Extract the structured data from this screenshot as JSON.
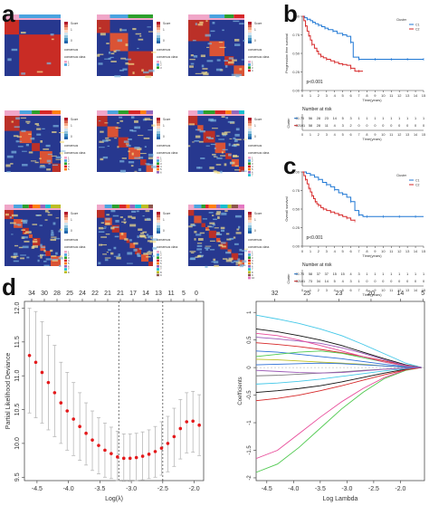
{
  "panels": {
    "a": "a",
    "b": "b",
    "c": "c",
    "d": "d"
  },
  "consensus": {
    "legend_titles": [
      "Score",
      "consensus",
      "consensus class"
    ],
    "score_ticks": [
      "1",
      "0.8",
      "0.6",
      "0.4",
      "0.2",
      "0"
    ],
    "class_labels": [
      [
        "1",
        "2"
      ],
      [
        "1",
        "2",
        "3"
      ],
      [
        "1",
        "2",
        "3",
        "4"
      ],
      [
        "1",
        "2",
        "3",
        "4",
        "5"
      ],
      [
        "1",
        "2",
        "3",
        "4",
        "5",
        "6"
      ],
      [
        "1",
        "2",
        "3",
        "4",
        "5",
        "6",
        "7"
      ],
      [
        "1",
        "2",
        "3",
        "4",
        "5",
        "6",
        "7",
        "8"
      ],
      [
        "1",
        "2",
        "3",
        "4",
        "5",
        "6",
        "7",
        "8",
        "9"
      ],
      [
        "1",
        "2",
        "3",
        "4",
        "5",
        "6",
        "7",
        "8",
        "9",
        "10"
      ]
    ],
    "class_colors": [
      "#f0a6c8",
      "#4aa3df",
      "#2ca02c",
      "#d62728",
      "#ff7f0e",
      "#9467bd",
      "#17becf",
      "#bcbd22",
      "#8c564b",
      "#e377c2"
    ],
    "cluster_counts": [
      2,
      3,
      4,
      5,
      6,
      7,
      8,
      9,
      10
    ]
  },
  "chart_data": [
    {
      "type": "line",
      "title": "",
      "xlabel": "Time(years)",
      "ylabel": "Progression free survival",
      "x_ticks": [
        0,
        1,
        2,
        3,
        4,
        5,
        6,
        7,
        8,
        9,
        10,
        11,
        12,
        13,
        14,
        15
      ],
      "y_ticks": [
        0.0,
        0.25,
        0.5,
        0.75,
        1.0
      ],
      "xlim": [
        0,
        15
      ],
      "ylim": [
        0,
        1
      ],
      "legend_title": "Cluster",
      "legend_position": "top-right",
      "series": [
        {
          "name": "C1",
          "color": "#1f77d4",
          "x": [
            0,
            0.3,
            0.6,
            1,
            1.3,
            1.6,
            2,
            2.4,
            2.8,
            3.2,
            3.8,
            4.3,
            5,
            5.5,
            6,
            6.3,
            7,
            8,
            9,
            10,
            11,
            12,
            13,
            14,
            15
          ],
          "y": [
            1,
            0.98,
            0.96,
            0.94,
            0.92,
            0.9,
            0.88,
            0.86,
            0.84,
            0.82,
            0.8,
            0.77,
            0.75,
            0.73,
            0.65,
            0.45,
            0.42,
            0.42,
            0.42,
            0.42,
            0.42,
            0.42,
            0.42,
            0.42,
            0.42
          ]
        },
        {
          "name": "C2",
          "color": "#d62728",
          "x": [
            0,
            0.2,
            0.4,
            0.6,
            0.8,
            1,
            1.2,
            1.5,
            1.8,
            2,
            2.3,
            2.6,
            3,
            3.5,
            4,
            4.5,
            5,
            5.5,
            6,
            6.5,
            7,
            7.5
          ],
          "y": [
            1,
            0.94,
            0.87,
            0.8,
            0.74,
            0.68,
            0.62,
            0.57,
            0.53,
            0.49,
            0.46,
            0.44,
            0.42,
            0.4,
            0.38,
            0.36,
            0.35,
            0.34,
            0.3,
            0.26,
            0.26,
            0.26
          ]
        }
      ],
      "pvalue": "p<0.001",
      "risk_table_title": "Number at risk",
      "risk_table_ylabel": "Cluster",
      "risk_table": [
        {
          "name": "C1",
          "counts": [
            "70",
            "56",
            "28",
            "23",
            "14",
            "5",
            "3",
            "1",
            "1",
            "1",
            "1",
            "1",
            "1",
            "1",
            "1",
            "1"
          ]
        },
        {
          "name": "C2",
          "counts": [
            "101",
            "58",
            "28",
            "11",
            "4",
            "3",
            "2",
            "0",
            "0",
            "0",
            "0",
            "0",
            "0",
            "0",
            "0",
            "0"
          ]
        }
      ]
    },
    {
      "type": "line",
      "title": "",
      "xlabel": "Time(years)",
      "ylabel": "Overall survival",
      "x_ticks": [
        0,
        1,
        2,
        3,
        4,
        5,
        6,
        7,
        8,
        9,
        10,
        11,
        12,
        13,
        14,
        15
      ],
      "y_ticks": [
        0.0,
        0.25,
        0.5,
        0.75,
        1.0
      ],
      "xlim": [
        0,
        15
      ],
      "ylim": [
        0,
        1
      ],
      "legend_title": "Cluster",
      "legend_position": "top-right",
      "series": [
        {
          "name": "C1",
          "color": "#1f77d4",
          "x": [
            0,
            0.5,
            1,
            1.5,
            2,
            2.5,
            3,
            3.5,
            4,
            4.5,
            5,
            5.5,
            6,
            6.5,
            7,
            7.5,
            8,
            9,
            10,
            11,
            12,
            13,
            14,
            15
          ],
          "y": [
            1,
            0.98,
            0.96,
            0.93,
            0.9,
            0.86,
            0.83,
            0.8,
            0.76,
            0.72,
            0.7,
            0.66,
            0.6,
            0.48,
            0.42,
            0.4,
            0.4,
            0.4,
            0.4,
            0.4,
            0.4,
            0.4,
            0.4,
            0.4
          ]
        },
        {
          "name": "C2",
          "color": "#d62728",
          "x": [
            0,
            0.2,
            0.4,
            0.6,
            0.8,
            1,
            1.2,
            1.4,
            1.6,
            1.8,
            2,
            2.3,
            2.6,
            3,
            3.5,
            4,
            4.5,
            5,
            5.5,
            6,
            6.5
          ],
          "y": [
            1,
            0.95,
            0.9,
            0.84,
            0.78,
            0.73,
            0.68,
            0.64,
            0.6,
            0.57,
            0.55,
            0.52,
            0.5,
            0.48,
            0.46,
            0.44,
            0.42,
            0.4,
            0.38,
            0.35,
            0.34
          ]
        }
      ],
      "pvalue": "p<0.001",
      "risk_table_title": "Number at risk",
      "risk_table_ylabel": "Cluster",
      "risk_table": [
        {
          "name": "C1",
          "counts": [
            "70",
            "58",
            "37",
            "37",
            "15",
            "15",
            "4",
            "3",
            "1",
            "1",
            "1",
            "1",
            "1",
            "1",
            "1",
            "1"
          ]
        },
        {
          "name": "C2",
          "counts": [
            "101",
            "73",
            "34",
            "14",
            "5",
            "4",
            "3",
            "1",
            "0",
            "0",
            "0",
            "0",
            "0",
            "0",
            "0",
            "0"
          ]
        }
      ]
    },
    {
      "type": "scatter",
      "title": "",
      "xlabel": "Log(λ)",
      "ylabel": "Partial Likelihood Deviance",
      "xlim": [
        -4.7,
        -1.85
      ],
      "ylim": [
        9.45,
        12.1
      ],
      "x_ticks": [
        -4.5,
        -4.0,
        -3.5,
        -3.0,
        -2.5,
        -2.0
      ],
      "x_tick_labels": [
        "-4.5",
        "-4.0",
        "-3.5",
        "-3.0",
        "-2.5",
        "-2.0"
      ],
      "y_ticks": [
        9.5,
        10.0,
        10.5,
        11.0,
        11.5,
        12.0
      ],
      "y_tick_labels": [
        "9.5",
        "10.0",
        "10.5",
        "11.0",
        "11.5",
        "12.0"
      ],
      "top_axis_labels": [
        "34",
        "30",
        "28",
        "25",
        "24",
        "22",
        "21",
        "21",
        "17",
        "14",
        "13",
        "11",
        "5",
        "0"
      ],
      "vlines": [
        -3.2,
        -2.5
      ],
      "points": [
        {
          "x": -4.62,
          "y": 11.3,
          "lo": 10.45,
          "hi": 12.0
        },
        {
          "x": -4.52,
          "y": 11.2,
          "lo": 10.38,
          "hi": 11.95
        },
        {
          "x": -4.42,
          "y": 11.05,
          "lo": 10.3,
          "hi": 11.8
        },
        {
          "x": -4.32,
          "y": 10.9,
          "lo": 10.2,
          "hi": 11.6
        },
        {
          "x": -4.22,
          "y": 10.75,
          "lo": 10.1,
          "hi": 11.45
        },
        {
          "x": -4.12,
          "y": 10.6,
          "lo": 10.0,
          "hi": 11.2
        },
        {
          "x": -4.02,
          "y": 10.48,
          "lo": 9.9,
          "hi": 11.05
        },
        {
          "x": -3.92,
          "y": 10.36,
          "lo": 9.82,
          "hi": 10.9
        },
        {
          "x": -3.82,
          "y": 10.25,
          "lo": 9.75,
          "hi": 10.75
        },
        {
          "x": -3.72,
          "y": 10.15,
          "lo": 9.68,
          "hi": 10.6
        },
        {
          "x": -3.62,
          "y": 10.05,
          "lo": 9.6,
          "hi": 10.48
        },
        {
          "x": -3.52,
          "y": 9.97,
          "lo": 9.55,
          "hi": 10.38
        },
        {
          "x": -3.42,
          "y": 9.9,
          "lo": 9.5,
          "hi": 10.3
        },
        {
          "x": -3.32,
          "y": 9.85,
          "lo": 9.48,
          "hi": 10.24
        },
        {
          "x": -3.22,
          "y": 9.8,
          "lo": 9.45,
          "hi": 10.18
        },
        {
          "x": -3.12,
          "y": 9.78,
          "lo": 9.44,
          "hi": 10.14
        },
        {
          "x": -3.02,
          "y": 9.78,
          "lo": 9.44,
          "hi": 10.14
        },
        {
          "x": -2.92,
          "y": 9.79,
          "lo": 9.45,
          "hi": 10.15
        },
        {
          "x": -2.82,
          "y": 9.81,
          "lo": 9.46,
          "hi": 10.17
        },
        {
          "x": -2.72,
          "y": 9.84,
          "lo": 9.48,
          "hi": 10.2
        },
        {
          "x": -2.62,
          "y": 9.88,
          "lo": 9.5,
          "hi": 10.25
        },
        {
          "x": -2.52,
          "y": 9.93,
          "lo": 9.53,
          "hi": 10.32
        },
        {
          "x": -2.42,
          "y": 10.0,
          "lo": 9.58,
          "hi": 10.4
        },
        {
          "x": -2.32,
          "y": 10.1,
          "lo": 9.66,
          "hi": 10.52
        },
        {
          "x": -2.22,
          "y": 10.22,
          "lo": 9.77,
          "hi": 10.65
        },
        {
          "x": -2.12,
          "y": 10.32,
          "lo": 9.86,
          "hi": 10.75
        },
        {
          "x": -2.02,
          "y": 10.33,
          "lo": 9.87,
          "hi": 10.77
        },
        {
          "x": -1.92,
          "y": 10.27,
          "lo": 9.82,
          "hi": 10.72
        }
      ]
    },
    {
      "type": "line",
      "title": "",
      "xlabel": "Log Lambda",
      "ylabel": "Coefficients",
      "xlim": [
        -4.7,
        -1.55
      ],
      "ylim": [
        -2.05,
        1.2
      ],
      "x_ticks": [
        -4.5,
        -4.0,
        -3.5,
        -3.0,
        -2.5,
        -2.0
      ],
      "x_tick_labels": [
        "-4.5",
        "-4.0",
        "-3.5",
        "-3.0",
        "-2.5",
        "-2.0"
      ],
      "y_ticks": [
        -2,
        -1.5,
        -1,
        -0.5,
        0,
        0.5,
        1
      ],
      "y_tick_labels": [
        "-2",
        "-1.5",
        "-1",
        "-0.5",
        "0",
        "0.5",
        "1"
      ],
      "top_axis_ticks": [
        -4.35,
        -3.75,
        -3.15,
        -2.55,
        -2.0,
        -1.58
      ],
      "top_axis_labels": [
        "32",
        "25",
        "23",
        "20",
        "14",
        "5"
      ],
      "series": [
        {
          "color": "#4ec94e",
          "x": [
            -4.7,
            -4.3,
            -3.9,
            -3.5,
            -3.1,
            -2.7,
            -2.3,
            -1.9,
            -1.6
          ],
          "y": [
            -1.9,
            -1.75,
            -1.45,
            -1.1,
            -0.75,
            -0.45,
            -0.2,
            -0.05,
            0
          ]
        },
        {
          "color": "#e84c9a",
          "x": [
            -4.7,
            -4.3,
            -3.9,
            -3.5,
            -3.1,
            -2.7,
            -2.3,
            -1.9,
            -1.6
          ],
          "y": [
            -1.65,
            -1.5,
            -1.2,
            -0.9,
            -0.62,
            -0.38,
            -0.18,
            -0.04,
            0
          ]
        },
        {
          "color": "#44c8e8",
          "x": [
            -4.7,
            -4.3,
            -3.9,
            -3.5,
            -3.1,
            -2.7,
            -2.3,
            -1.9,
            -1.6
          ],
          "y": [
            0.95,
            0.88,
            0.8,
            0.7,
            0.58,
            0.42,
            0.25,
            0.08,
            0
          ]
        },
        {
          "color": "#111111",
          "x": [
            -4.7,
            -4.3,
            -3.9,
            -3.5,
            -3.1,
            -2.7,
            -2.3,
            -1.9,
            -1.6
          ],
          "y": [
            0.7,
            0.65,
            0.58,
            0.5,
            0.4,
            0.28,
            0.16,
            0.05,
            0
          ]
        },
        {
          "color": "#d62728",
          "x": [
            -4.7,
            -4.3,
            -3.9,
            -3.5,
            -3.1,
            -2.7,
            -2.3,
            -1.9,
            -1.6
          ],
          "y": [
            0.45,
            0.42,
            0.38,
            0.33,
            0.27,
            0.2,
            0.12,
            0.04,
            0
          ]
        },
        {
          "color": "#2c6fd6",
          "x": [
            -4.7,
            -4.3,
            -3.9,
            -3.5,
            -3.1,
            -2.7,
            -2.3,
            -1.9,
            -1.6
          ],
          "y": [
            0.3,
            0.28,
            0.24,
            0.2,
            0.16,
            0.11,
            0.06,
            0.02,
            0
          ]
        },
        {
          "color": "#9b59b6",
          "x": [
            -4.7,
            -4.3,
            -3.9,
            -3.5,
            -3.1,
            -2.7,
            -2.3,
            -1.9,
            -1.6
          ],
          "y": [
            0.55,
            0.52,
            0.48,
            0.44,
            0.36,
            0.26,
            0.14,
            0.04,
            0
          ]
        },
        {
          "color": "#bcbd22",
          "x": [
            -4.7,
            -4.3,
            -3.9,
            -3.5,
            -3.1,
            -2.7,
            -2.3,
            -1.9,
            -1.6
          ],
          "y": [
            0.15,
            0.14,
            0.12,
            0.1,
            0.08,
            0.06,
            0.03,
            0.01,
            0
          ]
        },
        {
          "color": "#7f7f7f",
          "x": [
            -4.7,
            -4.3,
            -3.9,
            -3.5,
            -3.1,
            -2.7,
            -2.3,
            -1.9,
            -1.6
          ],
          "y": [
            -0.15,
            -0.14,
            -0.12,
            -0.1,
            -0.08,
            -0.05,
            -0.03,
            -0.01,
            0
          ]
        },
        {
          "color": "#111111",
          "x": [
            -4.7,
            -4.3,
            -3.9,
            -3.5,
            -3.1,
            -2.7,
            -2.3,
            -1.9,
            -1.6
          ],
          "y": [
            -0.45,
            -0.42,
            -0.38,
            -0.33,
            -0.26,
            -0.18,
            -0.1,
            -0.03,
            0
          ]
        },
        {
          "color": "#4ec94e",
          "x": [
            -4.7,
            -4.3,
            -3.9,
            -3.5,
            -3.1,
            -2.7,
            -2.3,
            -1.9,
            -1.6
          ],
          "y": [
            0.2,
            0.24,
            0.28,
            0.3,
            0.26,
            0.18,
            0.1,
            0.03,
            0
          ]
        },
        {
          "color": "#e84c9a",
          "x": [
            -4.7,
            -4.3,
            -3.9,
            -3.5,
            -3.1,
            -2.7,
            -2.3,
            -1.9,
            -1.6
          ],
          "y": [
            0.62,
            0.58,
            0.5,
            0.4,
            0.3,
            0.2,
            0.1,
            0.03,
            0
          ]
        },
        {
          "color": "#44c8e8",
          "x": [
            -4.7,
            -4.3,
            -3.9,
            -3.5,
            -3.1,
            -2.7,
            -2.3,
            -1.9,
            -1.6
          ],
          "y": [
            -0.3,
            -0.28,
            -0.25,
            -0.21,
            -0.16,
            -0.11,
            -0.06,
            -0.02,
            0
          ]
        },
        {
          "color": "#d62728",
          "x": [
            -4.7,
            -4.3,
            -3.9,
            -3.5,
            -3.1,
            -2.7,
            -2.3,
            -1.9,
            -1.6
          ],
          "y": [
            -0.6,
            -0.56,
            -0.5,
            -0.42,
            -0.33,
            -0.23,
            -0.13,
            -0.04,
            0
          ]
        },
        {
          "color": "#2c6fd6",
          "x": [
            -4.7,
            -4.3,
            -3.9,
            -3.5,
            -3.1,
            -2.7,
            -2.3,
            -1.9,
            -1.6
          ],
          "y": [
            0.05,
            0.06,
            0.07,
            0.08,
            0.07,
            0.05,
            0.03,
            0.01,
            0
          ]
        },
        {
          "color": "#9b59b6",
          "x": [
            -4.7,
            -4.3,
            -3.9,
            -3.5,
            -3.1,
            -2.7,
            -2.3,
            -1.9,
            -1.6
          ],
          "y": [
            -0.05,
            -0.07,
            -0.09,
            -0.1,
            -0.09,
            -0.06,
            -0.03,
            -0.01,
            0
          ]
        }
      ]
    }
  ]
}
